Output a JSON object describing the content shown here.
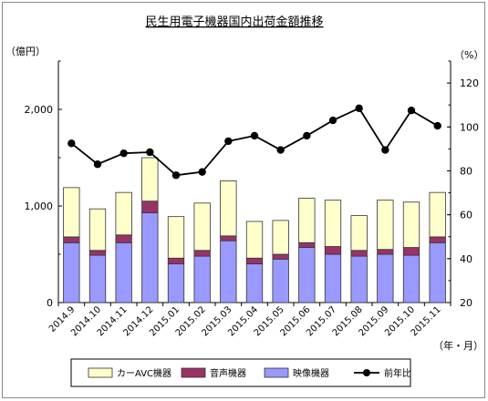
{
  "chart_data": {
    "type": "bar",
    "stacked": true,
    "title": "民生用電子機器国内出荷金額推移",
    "ylabel_left": "（億円）",
    "ylabel_right": "（%）",
    "xlabel": "（年・月）",
    "ylim_left": [
      0,
      2500
    ],
    "yticks_left": [
      "0",
      "1,000",
      "2,000"
    ],
    "ylim_right": [
      20,
      130
    ],
    "yticks_right": [
      "20",
      "40",
      "60",
      "80",
      "100",
      "120"
    ],
    "grid": false,
    "legend_position": "bottom",
    "categories": [
      "2014.9",
      "2014.10",
      "2014.11",
      "2014.12",
      "2015.01",
      "2015.02",
      "2015.03",
      "2015.04",
      "2015.05",
      "2015.06",
      "2015.07",
      "2015.08",
      "2015.09",
      "2015.10",
      "2015.11"
    ],
    "series": [
      {
        "name": "映像機器",
        "kind": "bar",
        "color": "#9999ff",
        "values": [
          620,
          490,
          620,
          930,
          400,
          480,
          640,
          400,
          450,
          570,
          500,
          480,
          500,
          490,
          620
        ]
      },
      {
        "name": "音声機器",
        "kind": "bar",
        "color": "#993366",
        "values": [
          60,
          50,
          80,
          120,
          60,
          60,
          50,
          60,
          50,
          50,
          80,
          60,
          50,
          80,
          60
        ]
      },
      {
        "name": "カーAVC機器",
        "kind": "bar",
        "color": "#ffffcc",
        "values": [
          510,
          430,
          440,
          450,
          430,
          490,
          570,
          380,
          350,
          460,
          480,
          360,
          510,
          470,
          460
        ]
      },
      {
        "name": "前年比",
        "kind": "line",
        "axis": "right",
        "color": "#000000",
        "values": [
          92.5,
          83,
          88,
          88.5,
          78,
          79.5,
          93.5,
          96,
          89.5,
          96,
          103,
          108.5,
          89.5,
          107.5,
          100.5
        ]
      }
    ]
  }
}
